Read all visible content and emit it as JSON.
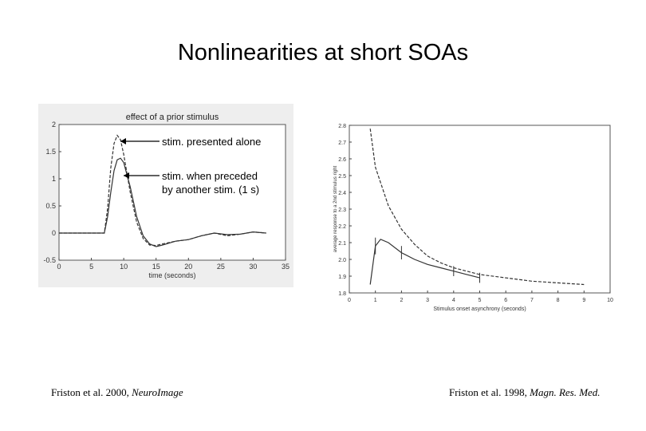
{
  "slide": {
    "title": "Nonlinearities at short SOAs"
  },
  "annotations": {
    "alone": "stim. presented alone",
    "preceded_line1": "stim. when preceded",
    "preceded_line2": "by another stim. (1 s)"
  },
  "citations": {
    "left_text": "Friston et al. 2000, ",
    "left_journal": "NeuroImage",
    "right_text": "Friston et al. 1998, ",
    "right_journal": "Magn. Res. Med."
  },
  "chart_data": [
    {
      "type": "line",
      "title": "effect of a prior stimulus",
      "xlabel": "time (seconds)",
      "ylabel": "",
      "xlim": [
        0,
        35
      ],
      "ylim": [
        -0.5,
        2
      ],
      "xticks": [
        0,
        5,
        10,
        15,
        20,
        25,
        30,
        35
      ],
      "yticks": [
        -0.5,
        0,
        0.5,
        1,
        1.5,
        2
      ],
      "grid": false,
      "series": [
        {
          "x": [
            0,
            7,
            7.5,
            8,
            8.5,
            9,
            9.5,
            10,
            11,
            12,
            13,
            14,
            15,
            16,
            18,
            20,
            22,
            24,
            26,
            28,
            30,
            32
          ],
          "y": [
            0,
            0,
            0.45,
            1.2,
            1.65,
            1.8,
            1.72,
            1.45,
            0.75,
            0.2,
            -0.1,
            -0.22,
            -0.23,
            -0.2,
            -0.15,
            -0.12,
            -0.05,
            0.0,
            -0.05,
            -0.02,
            0.02,
            0.0
          ],
          "style": "dashed"
        },
        {
          "x": [
            0,
            7,
            7.5,
            8,
            8.5,
            9,
            9.5,
            10,
            11,
            12,
            13,
            14,
            15,
            16,
            18,
            20,
            22,
            24,
            26,
            28,
            30,
            32
          ],
          "y": [
            0,
            0,
            0.3,
            0.75,
            1.15,
            1.35,
            1.38,
            1.3,
            0.85,
            0.3,
            -0.05,
            -0.2,
            -0.25,
            -0.22,
            -0.15,
            -0.12,
            -0.05,
            0.0,
            -0.03,
            -0.02,
            0.02,
            0.0
          ],
          "style": "solid"
        }
      ]
    },
    {
      "type": "line",
      "title": "",
      "xlabel": "Stimulus onset asynchrony (seconds)",
      "ylabel": "average response to a 2nd stimulus right",
      "xlim": [
        0,
        10
      ],
      "ylim": [
        1.8,
        2.8
      ],
      "xticks": [
        0,
        1,
        2,
        3,
        4,
        5,
        6,
        7,
        8,
        9,
        10
      ],
      "yticks": [
        1.8,
        1.9,
        2.0,
        2.1,
        2.2,
        2.3,
        2.4,
        2.5,
        2.6,
        2.7,
        2.8
      ],
      "ytick_labels": [
        "1.8",
        "1.9",
        "2.0",
        "2.1",
        "2.2",
        "2.3",
        "2.4",
        "2.5",
        "2.6",
        "2.7",
        "2.8"
      ],
      "grid": false,
      "series": [
        {
          "x": [
            0.8,
            1,
            1.5,
            2,
            2.5,
            3,
            3.5,
            4,
            4.5,
            5,
            6,
            7,
            8,
            9
          ],
          "y": [
            2.78,
            2.55,
            2.32,
            2.18,
            2.09,
            2.02,
            1.98,
            1.95,
            1.93,
            1.91,
            1.89,
            1.87,
            1.86,
            1.85
          ],
          "style": "dashed"
        },
        {
          "x": [
            0.8,
            1,
            1.2,
            1.5,
            2,
            2.5,
            3,
            3.5,
            4,
            4.5,
            5
          ],
          "y": [
            1.85,
            2.08,
            2.12,
            2.1,
            2.04,
            2.0,
            1.97,
            1.95,
            1.93,
            1.91,
            1.89
          ],
          "style": "solid"
        }
      ],
      "error_bars": [
        {
          "x": 1,
          "y": 2.08,
          "lo": 2.03,
          "hi": 2.13
        },
        {
          "x": 2,
          "y": 2.04,
          "lo": 2.0,
          "hi": 2.08
        },
        {
          "x": 4,
          "y": 1.93,
          "lo": 1.9,
          "hi": 1.96
        },
        {
          "x": 5,
          "y": 1.89,
          "lo": 1.86,
          "hi": 1.92
        }
      ]
    }
  ]
}
